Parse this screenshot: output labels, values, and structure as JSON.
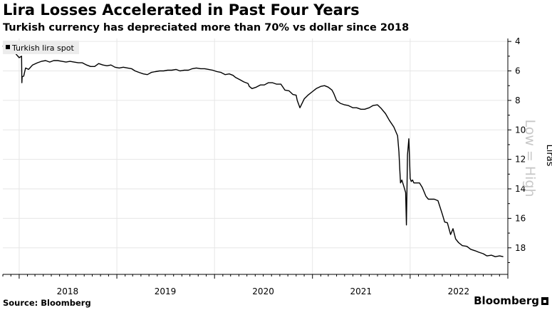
{
  "header": {
    "title": "Lira Losses Accelerated in Past Four Years",
    "subtitle": "Turkish currency has depreciated more than 70% vs dollar since 2018"
  },
  "footer": {
    "source": "Source: Bloomberg",
    "brand": "Bloomberg",
    "brand_icon": "bloomberg-terminal-icon"
  },
  "chart_data": {
    "type": "line",
    "title": "Lira Losses Accelerated in Past Four Years",
    "subtitle": "Turkish currency has depreciated more than 70% vs dollar since 2018",
    "ylabel": "Liras",
    "y_annotation": "Low = High",
    "y_inverted": true,
    "ylim": [
      3.8,
      19.8
    ],
    "y_ticks": [
      4,
      6,
      8,
      10,
      12,
      14,
      16,
      18
    ],
    "x_ticks": [
      "2018",
      "2019",
      "2020",
      "2021",
      "2022"
    ],
    "grid": true,
    "legend_position": "top-left",
    "series": [
      {
        "name": "Turkish lira spot",
        "color": "#000000",
        "x": [
          "2017-11-01",
          "2017-11-15",
          "2017-12-01",
          "2017-12-15",
          "2018-01-01",
          "2018-01-10",
          "2018-01-11",
          "2018-01-12",
          "2018-01-18",
          "2018-01-25",
          "2018-02-05",
          "2018-02-20",
          "2018-03-10",
          "2018-03-25",
          "2018-04-10",
          "2018-04-25",
          "2018-05-10",
          "2018-05-25",
          "2018-06-10",
          "2018-06-25",
          "2018-07-10",
          "2018-07-25",
          "2018-08-10",
          "2018-08-25",
          "2018-09-10",
          "2018-09-25",
          "2018-10-10",
          "2018-10-25",
          "2018-11-10",
          "2018-11-25",
          "2018-12-10",
          "2018-12-25",
          "2019-01-10",
          "2019-01-25",
          "2019-02-10",
          "2019-02-25",
          "2019-03-10",
          "2019-03-25",
          "2019-04-10",
          "2019-04-25",
          "2019-05-10",
          "2019-05-25",
          "2019-06-10",
          "2019-06-25",
          "2019-07-10",
          "2019-07-25",
          "2019-08-10",
          "2019-08-25",
          "2019-09-10",
          "2019-09-25",
          "2019-10-10",
          "2019-10-25",
          "2019-11-10",
          "2019-11-25",
          "2019-12-10",
          "2019-12-25",
          "2020-01-10",
          "2020-01-25",
          "2020-02-10",
          "2020-02-25",
          "2020-03-10",
          "2020-03-20",
          "2020-04-05",
          "2020-04-20",
          "2020-05-05",
          "2020-05-10",
          "2020-05-20",
          "2020-06-05",
          "2020-06-20",
          "2020-07-05",
          "2020-07-20",
          "2020-08-05",
          "2020-08-20",
          "2020-09-05",
          "2020-09-20",
          "2020-10-05",
          "2020-10-20",
          "2020-11-01",
          "2020-11-05",
          "2020-11-15",
          "2020-12-01",
          "2020-12-15",
          "2021-01-01",
          "2021-01-15",
          "2021-02-01",
          "2021-02-15",
          "2021-03-01",
          "2021-03-15",
          "2021-03-22",
          "2021-04-01",
          "2021-04-15",
          "2021-05-01",
          "2021-05-15",
          "2021-06-01",
          "2021-06-15",
          "2021-07-01",
          "2021-07-15",
          "2021-08-01",
          "2021-08-15",
          "2021-09-01",
          "2021-09-15",
          "2021-10-01",
          "2021-10-15",
          "2021-11-01",
          "2021-11-15",
          "2021-11-20",
          "2021-11-23",
          "2021-11-26",
          "2021-12-01",
          "2021-12-08",
          "2021-12-15",
          "2021-12-18",
          "2021-12-20",
          "2021-12-22",
          "2021-12-27",
          "2022-01-01",
          "2022-01-05",
          "2022-01-10",
          "2022-01-15",
          "2022-01-25",
          "2022-02-05",
          "2022-02-15",
          "2022-03-01",
          "2022-03-10",
          "2022-03-20",
          "2022-04-01",
          "2022-04-15",
          "2022-05-01",
          "2022-05-10",
          "2022-05-20",
          "2022-06-01",
          "2022-06-10",
          "2022-06-20",
          "2022-07-01",
          "2022-07-15",
          "2022-08-01",
          "2022-08-15",
          "2022-09-01",
          "2022-09-15",
          "2022-10-01",
          "2022-10-15",
          "2022-11-01",
          "2022-11-15",
          "2022-12-01",
          "2022-12-15"
        ],
        "values": [
          4.3,
          4.75,
          4.6,
          4.75,
          5.1,
          5.0,
          6.8,
          6.4,
          6.35,
          5.8,
          5.9,
          5.6,
          5.45,
          5.35,
          5.3,
          5.4,
          5.3,
          5.3,
          5.35,
          5.4,
          5.35,
          5.4,
          5.45,
          5.45,
          5.6,
          5.7,
          5.7,
          5.5,
          5.6,
          5.65,
          5.6,
          5.75,
          5.8,
          5.75,
          5.8,
          5.85,
          6.0,
          6.1,
          6.2,
          6.25,
          6.1,
          6.05,
          6.0,
          6.0,
          5.95,
          5.95,
          5.9,
          6.0,
          5.95,
          5.95,
          5.85,
          5.8,
          5.85,
          5.85,
          5.9,
          5.95,
          6.05,
          6.1,
          6.25,
          6.2,
          6.3,
          6.45,
          6.6,
          6.75,
          6.85,
          7.05,
          7.2,
          7.1,
          6.95,
          6.95,
          6.8,
          6.8,
          6.9,
          6.9,
          7.3,
          7.35,
          7.6,
          7.65,
          8.0,
          8.5,
          7.9,
          7.65,
          7.4,
          7.2,
          7.05,
          7.0,
          7.1,
          7.3,
          7.55,
          8.0,
          8.2,
          8.3,
          8.35,
          8.5,
          8.5,
          8.6,
          8.6,
          8.5,
          8.35,
          8.3,
          8.55,
          8.9,
          9.35,
          9.8,
          10.4,
          11.5,
          12.6,
          13.6,
          13.4,
          13.8,
          14.25,
          16.45,
          14.0,
          11.7,
          10.6,
          13.3,
          13.5,
          13.4,
          13.6,
          13.6,
          13.6,
          13.9,
          14.5,
          14.7,
          14.7,
          14.7,
          14.8,
          15.7,
          16.25,
          16.3,
          17.1,
          16.7,
          17.4,
          17.65,
          17.85,
          17.9,
          18.1,
          18.2,
          18.3,
          18.4,
          18.55,
          18.5,
          18.6,
          18.55,
          18.6
        ]
      }
    ]
  }
}
